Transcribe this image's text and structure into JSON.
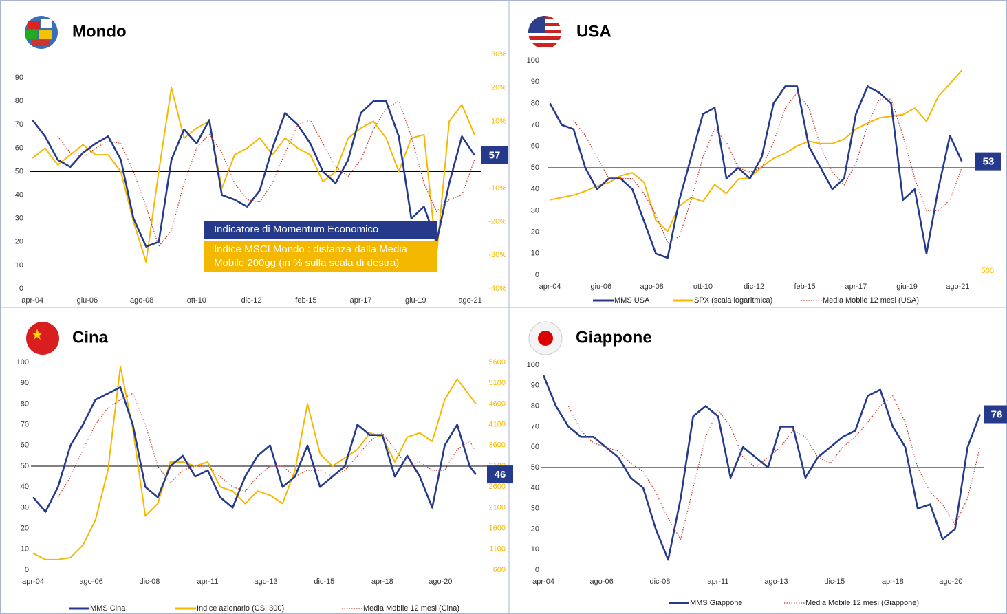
{
  "chart_data": [
    {
      "type": "line",
      "title": "Mondo",
      "legend": "inside",
      "x": [
        2004.25,
        2004.75,
        2005.25,
        2005.75,
        2006.25,
        2006.75,
        2007.25,
        2007.75,
        2008.25,
        2008.75,
        2009.25,
        2009.75,
        2010.25,
        2010.75,
        2011.25,
        2011.75,
        2012.25,
        2012.75,
        2013.25,
        2013.75,
        2014.25,
        2014.75,
        2015.25,
        2015.75,
        2016.25,
        2016.75,
        2017.25,
        2017.75,
        2018.25,
        2018.75,
        2019.25,
        2019.75,
        2020.25,
        2020.75,
        2021.25,
        2021.75
      ],
      "xlim": [
        2004,
        2022
      ],
      "xticks": [
        {
          "value": 2004.25,
          "label": "apr-04"
        },
        {
          "value": 2006.42,
          "label": "giu-06"
        },
        {
          "value": 2008.58,
          "label": "ago-08"
        },
        {
          "value": 2010.75,
          "label": "ott-10"
        },
        {
          "value": 2012.92,
          "label": "dic-12"
        },
        {
          "value": 2015.08,
          "label": "feb-15"
        },
        {
          "value": 2017.25,
          "label": "apr-17"
        },
        {
          "value": 2019.42,
          "label": "giu-19"
        },
        {
          "value": 2021.58,
          "label": "ago-21"
        }
      ],
      "ylim": [
        0,
        100
      ],
      "yticks": [
        0,
        10,
        20,
        30,
        40,
        50,
        60,
        70,
        80,
        90
      ],
      "y2lim": [
        -40,
        30
      ],
      "y2ticks": [
        {
          "value": -40,
          "label": "-40%"
        },
        {
          "value": -30,
          "label": "-30%"
        },
        {
          "value": -20,
          "label": "-20%"
        },
        {
          "value": -10,
          "label": "-10%"
        },
        {
          "value": 0,
          "label": "0%"
        },
        {
          "value": 10,
          "label": "10%"
        },
        {
          "value": 20,
          "label": "20%"
        },
        {
          "value": 30,
          "label": "30%"
        }
      ],
      "refline": 50,
      "series": [
        {
          "name": "Indicatore di Momentum Economico",
          "color": "#253a8a",
          "values": [
            72,
            65,
            55,
            52,
            58,
            62,
            65,
            55,
            30,
            18,
            20,
            55,
            68,
            62,
            72,
            40,
            38,
            35,
            42,
            60,
            75,
            70,
            62,
            50,
            45,
            55,
            75,
            80,
            80,
            65,
            30,
            35,
            20,
            45,
            65,
            57
          ]
        },
        {
          "name": "Indice MSCI Mondo : distanza dalla Media Mobile 200gg (in % sulla scala di destra)",
          "color": "#f5b800",
          "axis": "y2",
          "values": [
            -1,
            2,
            -3,
            0,
            3,
            0,
            0,
            -5,
            -20,
            -32,
            -5,
            20,
            5,
            8,
            10,
            -10,
            0,
            2,
            5,
            0,
            5,
            2,
            0,
            -8,
            -5,
            5,
            8,
            10,
            5,
            -5,
            5,
            6,
            -30,
            10,
            15,
            6
          ]
        },
        {
          "color": "#c0392b",
          "dash": "dotted",
          "values": [
            null,
            null,
            65,
            58,
            56,
            60,
            63,
            62,
            50,
            35,
            18,
            25,
            45,
            60,
            66,
            58,
            45,
            38,
            37,
            45,
            58,
            70,
            72,
            62,
            52,
            48,
            55,
            68,
            77,
            80,
            65,
            45,
            33,
            38,
            40,
            55
          ]
        }
      ]
    },
    {
      "type": "line",
      "title": "USA",
      "legend": "bottom",
      "x": [
        2004.25,
        2004.75,
        2005.25,
        2005.75,
        2006.25,
        2006.75,
        2007.25,
        2007.75,
        2008.25,
        2008.75,
        2009.25,
        2009.75,
        2010.25,
        2010.75,
        2011.25,
        2011.75,
        2012.25,
        2012.75,
        2013.25,
        2013.75,
        2014.25,
        2014.75,
        2015.25,
        2015.75,
        2016.25,
        2016.75,
        2017.25,
        2017.75,
        2018.25,
        2018.75,
        2019.25,
        2019.75,
        2020.25,
        2020.75,
        2021.25,
        2021.75
      ],
      "xlim": [
        2004,
        2023
      ],
      "xticks": [
        {
          "value": 2004.25,
          "label": "apr-04"
        },
        {
          "value": 2006.42,
          "label": "giu-06"
        },
        {
          "value": 2008.58,
          "label": "ago-08"
        },
        {
          "value": 2010.75,
          "label": "ott-10"
        },
        {
          "value": 2012.92,
          "label": "dic-12"
        },
        {
          "value": 2015.08,
          "label": "feb-15"
        },
        {
          "value": 2017.25,
          "label": "apr-17"
        },
        {
          "value": 2019.42,
          "label": "giu-19"
        },
        {
          "value": 2021.58,
          "label": "ago-21"
        }
      ],
      "ylim": [
        0,
        100
      ],
      "yticks": [
        0,
        10,
        20,
        30,
        40,
        50,
        60,
        70,
        80,
        90,
        100
      ],
      "y2lim": [
        500,
        5000
      ],
      "y2log": true,
      "y2ticks": [
        500
      ],
      "refline": 50,
      "series": [
        {
          "name": "MMS USA",
          "color": "#253a8a",
          "values": [
            80,
            70,
            68,
            50,
            40,
            45,
            45,
            40,
            25,
            10,
            8,
            35,
            55,
            75,
            78,
            45,
            50,
            45,
            55,
            80,
            88,
            88,
            60,
            50,
            40,
            45,
            75,
            88,
            85,
            80,
            35,
            40,
            10,
            40,
            65,
            53
          ]
        },
        {
          "name": "SPX (scala logaritmica)",
          "color": "#f5b800",
          "axis": "y2",
          "values": [
            1120,
            1150,
            1180,
            1230,
            1300,
            1350,
            1450,
            1500,
            1350,
            900,
            800,
            1050,
            1150,
            1100,
            1320,
            1200,
            1400,
            1420,
            1600,
            1750,
            1850,
            2000,
            2100,
            2050,
            2050,
            2150,
            2400,
            2550,
            2700,
            2750,
            2800,
            3000,
            2600,
            3400,
            3900,
            4500
          ]
        },
        {
          "name": "Media Mobile 12 mesi (USA)",
          "color": "#c0392b",
          "dash": "dotted",
          "values": [
            null,
            null,
            72,
            65,
            55,
            45,
            45,
            45,
            38,
            28,
            15,
            18,
            35,
            55,
            68,
            62,
            50,
            48,
            50,
            62,
            78,
            85,
            78,
            60,
            48,
            42,
            52,
            70,
            82,
            82,
            65,
            45,
            30,
            30,
            35,
            50
          ]
        }
      ]
    },
    {
      "type": "line",
      "title": "Cina",
      "legend": "bottom",
      "x": [
        2004.25,
        2004.75,
        2005.25,
        2005.75,
        2006.25,
        2006.75,
        2007.25,
        2007.75,
        2008.25,
        2008.75,
        2009.25,
        2009.75,
        2010.25,
        2010.75,
        2011.25,
        2011.75,
        2012.25,
        2012.75,
        2013.25,
        2013.75,
        2014.25,
        2014.75,
        2015.25,
        2015.75,
        2016.25,
        2016.75,
        2017.25,
        2017.75,
        2018.25,
        2018.75,
        2019.25,
        2019.75,
        2020.25,
        2020.75,
        2021.25,
        2021.75,
        2022.0
      ],
      "xlim": [
        2004,
        2022.5
      ],
      "xticks": [
        {
          "value": 2004.25,
          "label": "apr-04"
        },
        {
          "value": 2006.58,
          "label": "ago-06"
        },
        {
          "value": 2008.92,
          "label": "dic-08"
        },
        {
          "value": 2011.25,
          "label": "apr-11"
        },
        {
          "value": 2013.58,
          "label": "ago-13"
        },
        {
          "value": 2015.92,
          "label": "dic-15"
        },
        {
          "value": 2018.25,
          "label": "apr-18"
        },
        {
          "value": 2020.58,
          "label": "ago-20"
        }
      ],
      "ylim": [
        0,
        100
      ],
      "yticks": [
        0,
        10,
        20,
        30,
        40,
        50,
        60,
        70,
        80,
        90,
        100
      ],
      "y2lim": [
        600,
        5600
      ],
      "y2ticks": [
        600,
        1100,
        1600,
        2100,
        2600,
        3100,
        3600,
        4100,
        4600,
        5100,
        5600
      ],
      "refline": 50,
      "series": [
        {
          "name": "MMS Cina",
          "color": "#253a8a",
          "values": [
            35,
            28,
            40,
            60,
            70,
            82,
            85,
            88,
            70,
            40,
            35,
            50,
            55,
            45,
            48,
            35,
            30,
            45,
            55,
            60,
            40,
            45,
            60,
            40,
            45,
            50,
            70,
            65,
            65,
            45,
            55,
            45,
            30,
            60,
            70,
            50,
            46
          ]
        },
        {
          "name": "Indice azionario (CSI 300)",
          "color": "#f5b800",
          "axis": "y2",
          "values": [
            1000,
            850,
            850,
            900,
            1200,
            1800,
            3000,
            5500,
            4000,
            1900,
            2200,
            3200,
            3200,
            3100,
            3200,
            2600,
            2500,
            2200,
            2500,
            2400,
            2200,
            3000,
            4600,
            3400,
            3100,
            3300,
            3500,
            3900,
            3800,
            3200,
            3800,
            3900,
            3700,
            4700,
            5200,
            4800,
            4600
          ]
        },
        {
          "name": "Media Mobile 12 mesi (Cina)",
          "color": "#c0392b",
          "dash": "dotted",
          "values": [
            null,
            null,
            35,
            45,
            58,
            70,
            78,
            82,
            85,
            70,
            50,
            42,
            48,
            50,
            50,
            45,
            40,
            38,
            45,
            50,
            50,
            45,
            48,
            48,
            45,
            48,
            55,
            62,
            66,
            58,
            50,
            52,
            48,
            48,
            58,
            62,
            57
          ]
        }
      ]
    },
    {
      "type": "line",
      "title": "Giappone",
      "legend": "bottom",
      "x": [
        2004.25,
        2004.75,
        2005.25,
        2005.75,
        2006.25,
        2006.75,
        2007.25,
        2007.75,
        2008.25,
        2008.75,
        2009.25,
        2009.75,
        2010.25,
        2010.75,
        2011.25,
        2011.75,
        2012.25,
        2012.75,
        2013.25,
        2013.75,
        2014.25,
        2014.75,
        2015.25,
        2015.75,
        2016.25,
        2016.75,
        2017.25,
        2017.75,
        2018.25,
        2018.75,
        2019.25,
        2019.75,
        2020.25,
        2020.75,
        2021.25,
        2021.75
      ],
      "xlim": [
        2004,
        2022.5
      ],
      "xticks": [
        {
          "value": 2004.25,
          "label": "apr-04"
        },
        {
          "value": 2006.58,
          "label": "ago-06"
        },
        {
          "value": 2008.92,
          "label": "dic-08"
        },
        {
          "value": 2011.25,
          "label": "apr-11"
        },
        {
          "value": 2013.58,
          "label": "ago-13"
        },
        {
          "value": 2015.92,
          "label": "dic-15"
        },
        {
          "value": 2018.25,
          "label": "apr-18"
        },
        {
          "value": 2020.58,
          "label": "ago-20"
        }
      ],
      "ylim": [
        0,
        100
      ],
      "yticks": [
        0,
        10,
        20,
        30,
        40,
        50,
        60,
        70,
        80,
        90,
        100
      ],
      "refline": 50,
      "series": [
        {
          "name": "MMS Giappone",
          "color": "#253a8a",
          "values": [
            95,
            80,
            70,
            65,
            65,
            60,
            55,
            45,
            40,
            20,
            5,
            35,
            75,
            80,
            75,
            45,
            60,
            55,
            50,
            70,
            70,
            45,
            55,
            60,
            65,
            68,
            85,
            88,
            70,
            60,
            30,
            32,
            15,
            20,
            60,
            76
          ]
        },
        {
          "name": "Media Mobile 12 mesi (Giappone)",
          "color": "#c0392b",
          "dash": "dotted",
          "values": [
            null,
            null,
            80,
            68,
            62,
            60,
            58,
            52,
            48,
            38,
            25,
            15,
            40,
            65,
            78,
            70,
            55,
            50,
            55,
            60,
            68,
            65,
            55,
            52,
            60,
            65,
            72,
            80,
            85,
            72,
            50,
            38,
            32,
            22,
            35,
            60
          ]
        }
      ]
    }
  ]
}
